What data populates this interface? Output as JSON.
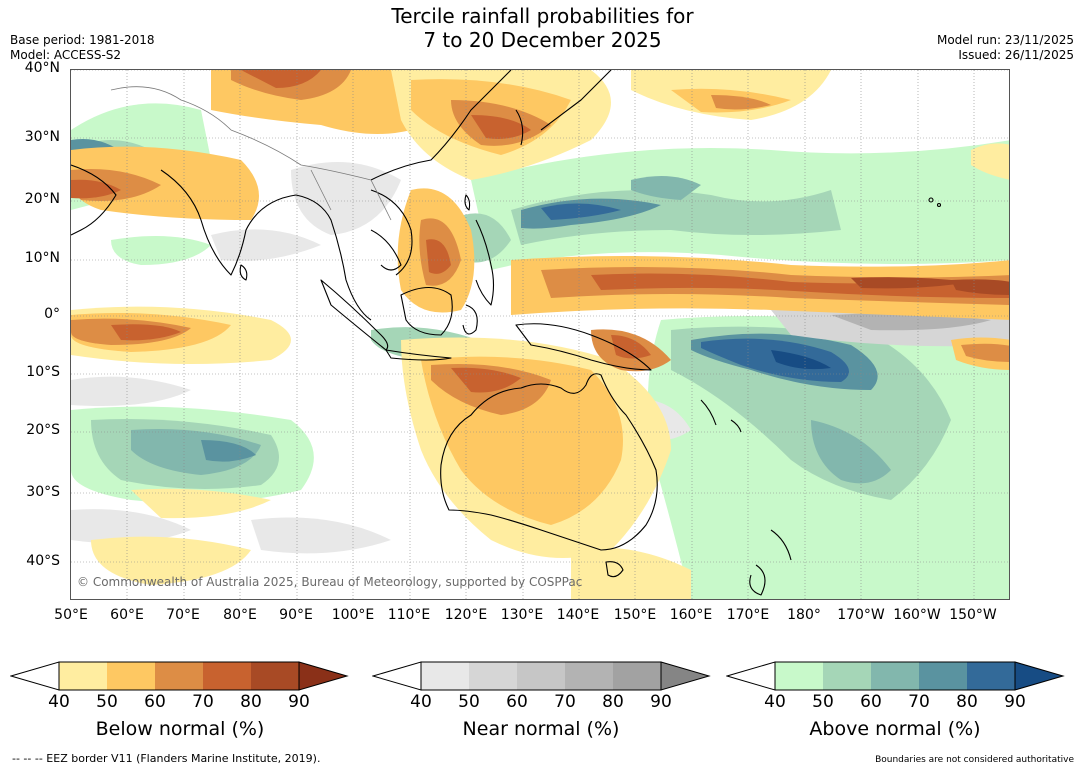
{
  "header": {
    "title_line1": "Tercile rainfall probabilities for",
    "title_line2": "7 to 20 December 2025",
    "base_period": "Base period: 1981-2018",
    "model": "Model: ACCESS-S2",
    "model_run": "Model run: 23/11/2025",
    "issued": "Issued: 26/11/2025"
  },
  "map": {
    "latitude_labels": [
      "40°N",
      "30°N",
      "20°N",
      "10°N",
      "0°",
      "10°S",
      "20°S",
      "30°S",
      "40°S"
    ],
    "longitude_labels": [
      "50°E",
      "60°E",
      "70°E",
      "80°E",
      "90°E",
      "100°E",
      "110°E",
      "120°E",
      "130°E",
      "140°E",
      "150°E",
      "160°E",
      "170°E",
      "180°",
      "170°W",
      "160°W",
      "150°W"
    ],
    "copyright": "© Commonwealth of Australia 2025, Bureau of Meteorology, supported by COSPPac"
  },
  "legends": [
    {
      "title": "Below normal (%)",
      "ticks": [
        "40",
        "50",
        "60",
        "70",
        "80",
        "90"
      ],
      "colors": [
        "#ffeda0",
        "#fec862",
        "#dd8d45",
        "#c8622f",
        "#a84a25",
        "#8a3018"
      ]
    },
    {
      "title": "Near normal (%)",
      "ticks": [
        "40",
        "50",
        "60",
        "70",
        "80",
        "90"
      ],
      "colors": [
        "#e8e8e8",
        "#d6d6d6",
        "#c6c6c6",
        "#b3b3b3",
        "#a2a2a2",
        "#858585"
      ]
    },
    {
      "title": "Above normal (%)",
      "ticks": [
        "40",
        "50",
        "60",
        "70",
        "80",
        "90"
      ],
      "colors": [
        "#c8f9ca",
        "#a5d6b7",
        "#82b7ad",
        "#5a93a0",
        "#336a99",
        "#174c84"
      ]
    }
  ],
  "footer": {
    "eez_note": "-- -- -- EEZ border V11 (Flanders Marine Institute, 2019).",
    "boundaries_note": "Boundaries are not considered authoritative"
  }
}
